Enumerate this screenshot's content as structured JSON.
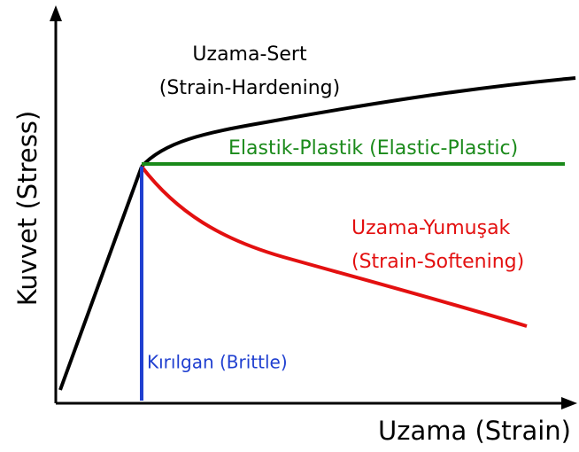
{
  "axes": {
    "y_label": "Kuvvet (Stress)",
    "x_label": "Uzama (Strain)"
  },
  "curves": [
    {
      "label_lines": [
        "Uzama-Sert",
        "(Strain-Hardening)"
      ]
    },
    {
      "label_lines": [
        "Elastik-Plastik (Elastic-Plastic)"
      ]
    },
    {
      "label_lines": [
        "Uzama-Yumuşak",
        "(Strain-Softening)"
      ]
    },
    {
      "label_lines": [
        "Kırılgan (Brittle)"
      ]
    }
  ]
}
